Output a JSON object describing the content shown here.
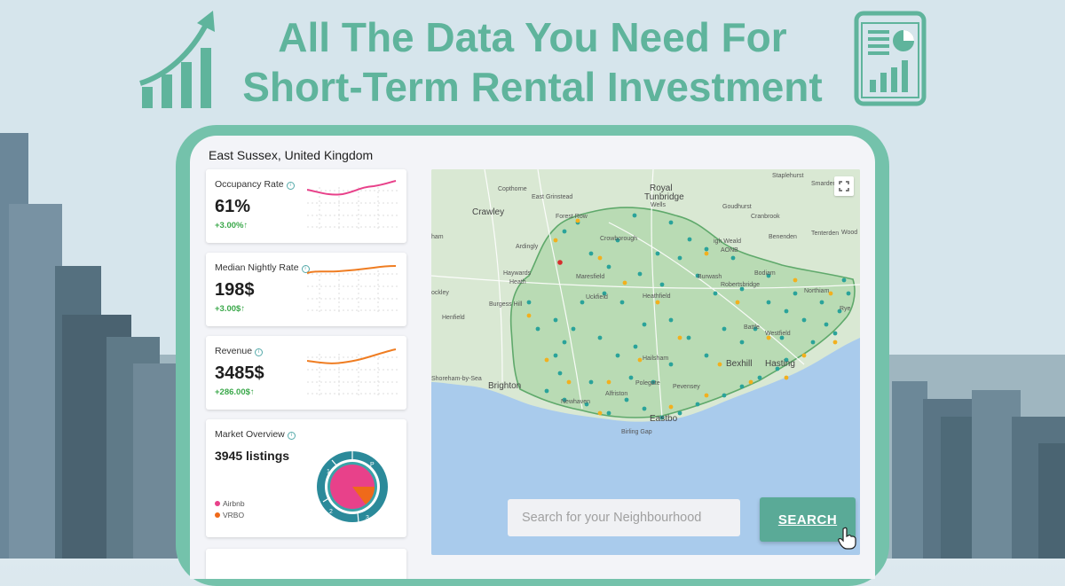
{
  "headline": {
    "line1": "All The Data You Need For",
    "line2": "Short-Term Rental Investment"
  },
  "dashboard": {
    "location": "East Sussex, United Kingdom",
    "cards": [
      {
        "label": "Occupancy Rate",
        "value": "61%",
        "change": "+3.00%↑",
        "color": "#e8418a"
      },
      {
        "label": "Median Nightly Rate",
        "value": "198$",
        "change": "+3.00$↑",
        "color": "#ef7d22"
      },
      {
        "label": "Revenue",
        "value": "3485$",
        "change": "+286.00$↑",
        "color": "#ef7d22"
      }
    ],
    "market": {
      "label": "Market Overview",
      "listings": "3945 listings",
      "legend": [
        {
          "name": "Airbnb",
          "color": "#e8418a"
        },
        {
          "name": "VRBO",
          "color": "#ef6a1a"
        }
      ],
      "ring_labels": [
        "1",
        "P",
        "2",
        "3"
      ]
    },
    "map": {
      "places": {
        "staplehurst": "Staplehurst",
        "copthorne": "Copthorne",
        "east_grinstead": "East Grinstead",
        "royal": "Royal",
        "tunbridge": "Tunbridge",
        "wells": "Wells",
        "goudhurst": "Goudhurst",
        "smarden": "Smarden",
        "crawley": "Crawley",
        "forest_row": "Forest Row",
        "cranbrook": "Cranbrook",
        "crowborough": "Crowborough",
        "high_weald": "igh Weald",
        "aonb": "AONB",
        "benenden": "Benenden",
        "tenterden": "Tenterden",
        "wood": "Wood",
        "ham": "ham",
        "ardingly": "Ardingly",
        "bodiam": "Bodiam",
        "haywards": "Haywards",
        "heath": "Heath",
        "maresfield": "Maresfield",
        "burwash": "Burwash",
        "robertsbridge": "Robertsbridge",
        "ockley": "ockley",
        "uckfield": "Uckfield",
        "heathfield": "Heathfield",
        "northiam": "Northiam",
        "burgess_hill": "Burgess Hill",
        "rye": "Rye",
        "henfield": "Henfield",
        "battle": "Battle",
        "westfield": "Westfield",
        "hailsham": "Hailsham",
        "bexhill": "Bexhill",
        "hastings": "Hasting",
        "shoreham": "Shoreham-by-Sea",
        "brighton": "Brighton",
        "pevensey": "Pevensey",
        "alfriston": "Alfriston",
        "newhaven": "Newhaven",
        "eastbourne": "Eastbo",
        "birling_gap": "Birling Gap",
        "polegate": "Polegate"
      }
    },
    "search": {
      "placeholder": "Search for your Neighbourhood",
      "button": "SEARCH"
    }
  },
  "colors": {
    "accent": "#5fb49c",
    "frame": "#74c2ab",
    "teal_dot": "#2aa39a",
    "gold_dot": "#f2b01e",
    "sea": "#a9cbec",
    "land": "#d9e8d3"
  }
}
